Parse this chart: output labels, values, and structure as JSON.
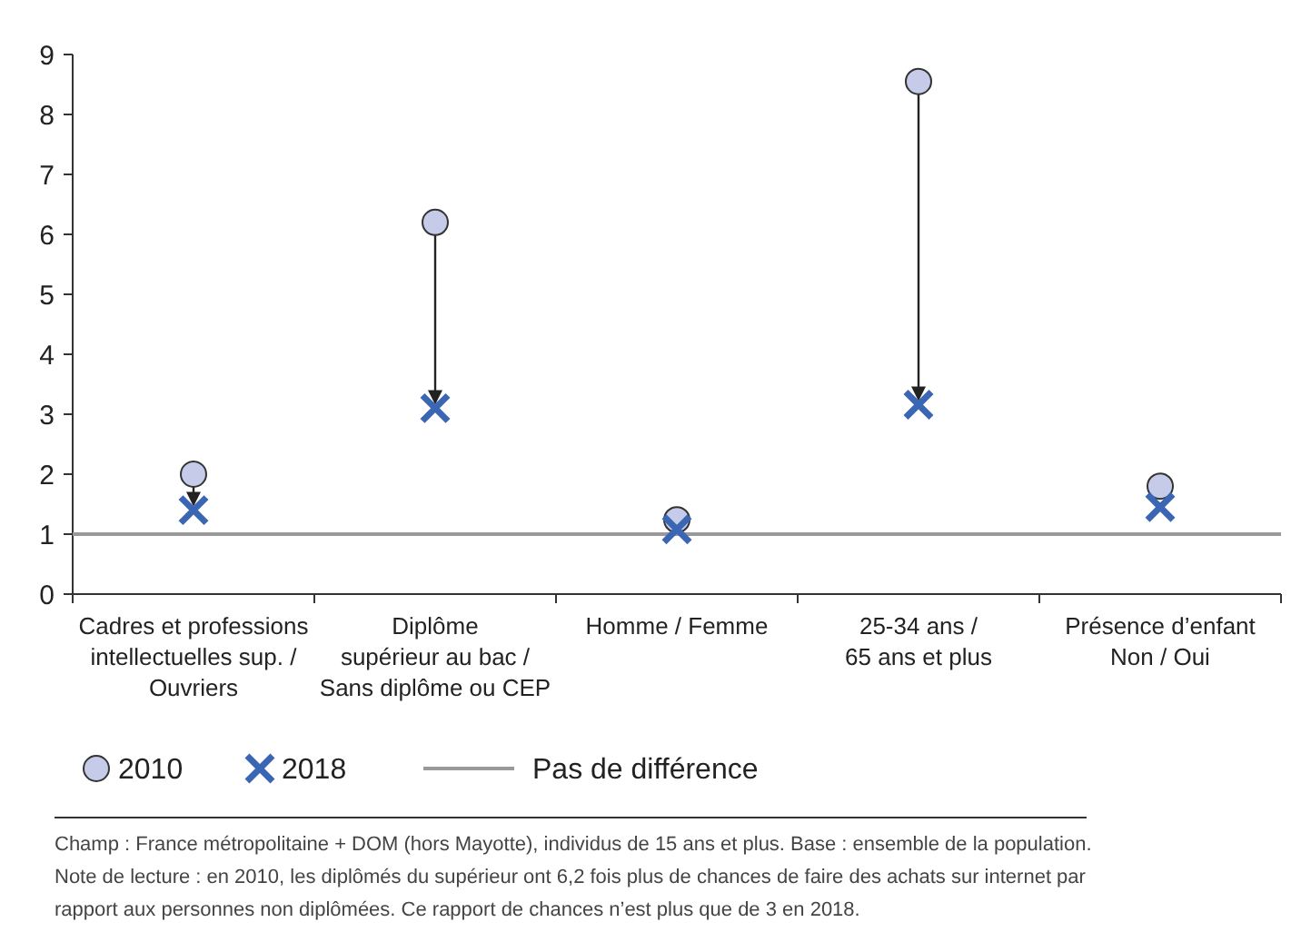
{
  "chart_data": {
    "type": "scatter",
    "categories": [
      "Cadres et professions\nintellectuelles sup. /\nOuvriers",
      "Diplôme\nsupérieur au bac /\nSans diplôme ou CEP",
      "Homme / Femme",
      "25-34 ans /\n65 ans et plus",
      "Présence d’enfant\nNon / Oui"
    ],
    "series": [
      {
        "name": "2010",
        "color": "#c5cbe8",
        "marker": "circle",
        "values": [
          2.0,
          6.2,
          1.24,
          8.55,
          1.8
        ]
      },
      {
        "name": "2018",
        "color": "#3a66b4",
        "marker": "cross",
        "values": [
          1.4,
          3.1,
          1.08,
          3.16,
          1.45
        ]
      }
    ],
    "ylim": [
      0,
      9
    ],
    "yticks": [
      0,
      1,
      2,
      3,
      4,
      5,
      6,
      7,
      8,
      9
    ],
    "grid": false,
    "legend": "bottom",
    "ref_lines": [
      {
        "axis": "y",
        "value": 1,
        "label": "Pas de différence",
        "color": "#999999"
      }
    ],
    "annotations": [
      "Champ : France métropolitaine + DOM (hors Mayotte), individus de 15 ans et plus. Base : ensemble de la population.",
      "Note de lecture : en 2010, les diplômés du supérieur ont 6,2 fois plus de chances de faire des achats sur internet par rapport aux personnes non diplômées. Ce rapport de chances n’est plus que de 3 en 2018."
    ]
  }
}
